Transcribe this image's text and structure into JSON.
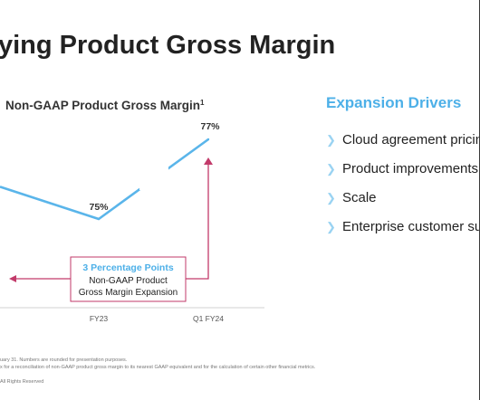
{
  "slide": {
    "title": "ying Product Gross Margin",
    "footnotes": [
      "uary 31. Numbers are rounded for presentation purposes.",
      "x for a reconciliation of non-GAAP product gross margin to its nearest GAAP equivalent and for the calculation of certain other financial metrics.",
      "All Rights Reserved"
    ]
  },
  "chart_data": {
    "type": "line",
    "title": "Non-GAAP Product Gross Margin",
    "title_superscript": "1",
    "categories": [
      "FY23",
      "Q1 FY24"
    ],
    "series": [
      {
        "values": [
          75,
          77
        ],
        "value_labels": [
          "75%",
          "77%"
        ]
      }
    ],
    "colors": {
      "line": "#5ab5ea",
      "annotation": "#c23a6a"
    },
    "annotation": {
      "headline": "3 Percentage Points",
      "body_line1": "Non-GAAP Product",
      "body_line2": "Gross Margin Expansion",
      "headline_color": "#4db0e8"
    },
    "grid": false
  },
  "drivers": {
    "title": "Expansion Drivers",
    "items": [
      "Cloud agreement pricing",
      "Product improvements",
      "Scale",
      "Enterprise customer suc"
    ],
    "bullet_icon": "chevron-right-icon"
  }
}
